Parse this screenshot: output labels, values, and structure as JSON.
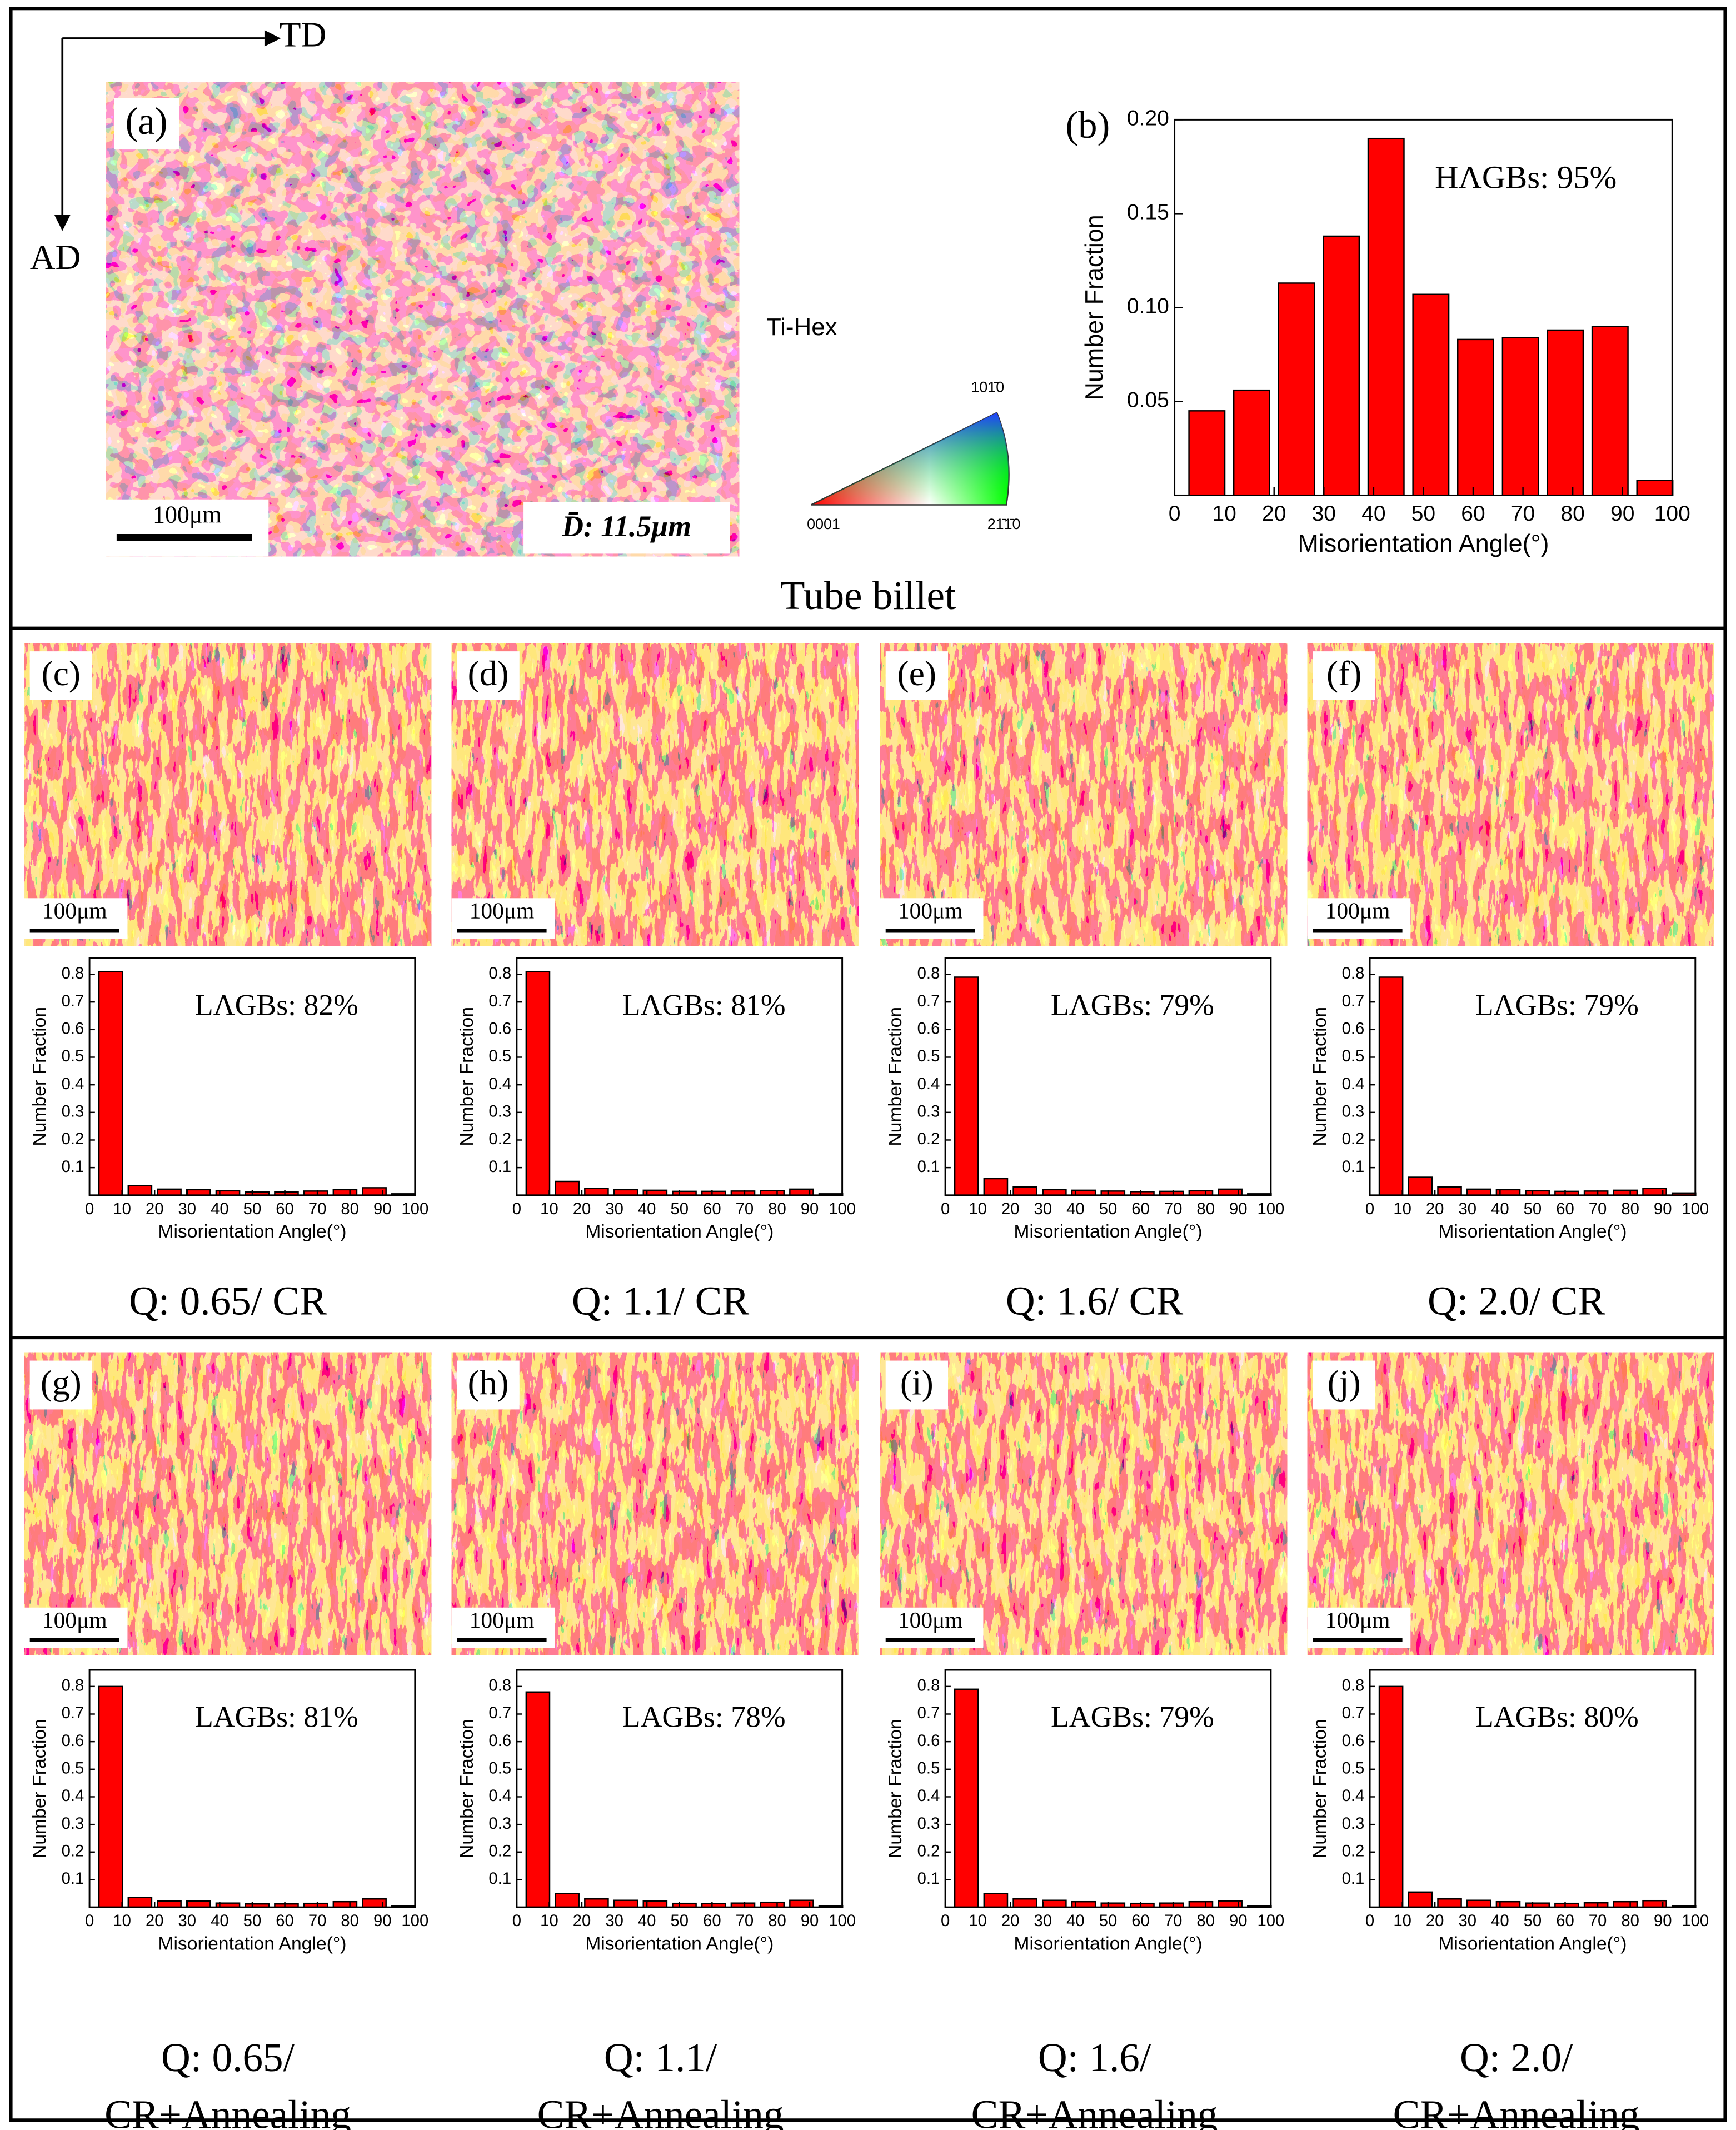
{
  "map_a": {
    "directions": [
      "TD",
      "AD"
    ],
    "panel": "(a)",
    "scale_bar": "100μm",
    "grain_size": "D̄: 11.5μm",
    "legend_title": "Ti-Hex",
    "ipf_labels": [
      "0001",
      "21̄1̄0",
      "101̄0"
    ],
    "caption": "Tube billet"
  },
  "chart_data": [
    {
      "type": "bar",
      "panel": "(b)",
      "annotation": "HΛGBs: 95%",
      "xlabel": "Misorientation Angle(°)",
      "ylabel": "Number Fraction",
      "color": "#ff0000",
      "x": [
        6.5,
        15.5,
        24.5,
        33.5,
        42.5,
        51.5,
        60.5,
        69.5,
        78.5,
        87.5,
        96.5
      ],
      "values": [
        0.045,
        0.056,
        0.113,
        0.138,
        0.19,
        0.107,
        0.083,
        0.084,
        0.088,
        0.09,
        0.008
      ],
      "xlim": [
        0,
        100
      ],
      "xticks": [
        0,
        10,
        20,
        30,
        40,
        50,
        60,
        70,
        80,
        90,
        100
      ],
      "ylim": [
        0,
        0.2
      ],
      "yticks": [
        0.05,
        {
          "value": 0.1,
          "label": "0.10"
        },
        0.15,
        {
          "value": 0.2,
          "label": "0.20"
        }
      ]
    },
    {
      "type": "bar",
      "panel": "(c)",
      "scale_bar": "100μm",
      "annotation": "LΛGBs: 82%",
      "caption": [
        "Q: 0.65/ CR"
      ],
      "xlabel": "Misorientation Angle(°)",
      "ylabel": "Number Fraction",
      "color": "#ff0000",
      "x": [
        6.5,
        15.5,
        24.5,
        33.5,
        42.5,
        51.5,
        60.5,
        69.5,
        78.5,
        87.5,
        96.5
      ],
      "values": [
        0.81,
        0.035,
        0.022,
        0.02,
        0.016,
        0.012,
        0.012,
        0.015,
        0.02,
        0.027,
        0.005
      ],
      "xlim": [
        0,
        100
      ],
      "xticks": [
        0,
        10,
        20,
        30,
        40,
        50,
        60,
        70,
        80,
        90,
        100
      ],
      "ylim": [
        0,
        0.86
      ],
      "yticks": [
        0.1,
        0.2,
        0.3,
        0.4,
        0.5,
        0.6,
        0.7,
        0.8
      ]
    },
    {
      "type": "bar",
      "panel": "(d)",
      "scale_bar": "100μm",
      "annotation": "LΛGBs: 81%",
      "caption": [
        "Q: 1.1/ CR"
      ],
      "xlabel": "Misorientation Angle(°)",
      "ylabel": "Number Fraction",
      "color": "#ff0000",
      "x": [
        6.5,
        15.5,
        24.5,
        33.5,
        42.5,
        51.5,
        60.5,
        69.5,
        78.5,
        87.5,
        96.5
      ],
      "values": [
        0.81,
        0.05,
        0.025,
        0.02,
        0.018,
        0.014,
        0.014,
        0.015,
        0.017,
        0.022,
        0.005
      ],
      "xlim": [
        0,
        100
      ],
      "xticks": [
        0,
        10,
        20,
        30,
        40,
        50,
        60,
        70,
        80,
        90,
        100
      ],
      "ylim": [
        0,
        0.86
      ],
      "yticks": [
        0.1,
        0.2,
        0.3,
        0.4,
        0.5,
        0.6,
        0.7,
        0.8
      ]
    },
    {
      "type": "bar",
      "panel": "(e)",
      "scale_bar": "100μm",
      "annotation": "LΛGBs: 79%",
      "caption": [
        "Q: 1.6/ CR"
      ],
      "xlabel": "Misorientation Angle(°)",
      "ylabel": "Number Fraction",
      "color": "#ff0000",
      "x": [
        6.5,
        15.5,
        24.5,
        33.5,
        42.5,
        51.5,
        60.5,
        69.5,
        78.5,
        87.5,
        96.5
      ],
      "values": [
        0.79,
        0.06,
        0.03,
        0.02,
        0.018,
        0.015,
        0.013,
        0.014,
        0.016,
        0.022,
        0.005
      ],
      "xlim": [
        0,
        100
      ],
      "xticks": [
        0,
        10,
        20,
        30,
        40,
        50,
        60,
        70,
        80,
        90,
        100
      ],
      "ylim": [
        0,
        0.86
      ],
      "yticks": [
        0.1,
        0.2,
        0.3,
        0.4,
        0.5,
        0.6,
        0.7,
        0.8
      ]
    },
    {
      "type": "bar",
      "panel": "(f)",
      "scale_bar": "100μm",
      "annotation": "LΛGBs: 79%",
      "caption": [
        "Q: 2.0/ CR"
      ],
      "xlabel": "Misorientation Angle(°)",
      "ylabel": "Number Fraction",
      "color": "#ff0000",
      "x": [
        6.5,
        15.5,
        24.5,
        33.5,
        42.5,
        51.5,
        60.5,
        69.5,
        78.5,
        87.5,
        96.5
      ],
      "values": [
        0.79,
        0.065,
        0.03,
        0.022,
        0.02,
        0.016,
        0.014,
        0.015,
        0.018,
        0.025,
        0.008
      ],
      "xlim": [
        0,
        100
      ],
      "xticks": [
        0,
        10,
        20,
        30,
        40,
        50,
        60,
        70,
        80,
        90,
        100
      ],
      "ylim": [
        0,
        0.86
      ],
      "yticks": [
        0.1,
        0.2,
        0.3,
        0.4,
        0.5,
        0.6,
        0.7,
        0.8
      ]
    },
    {
      "type": "bar",
      "panel": "(g)",
      "scale_bar": "100μm",
      "annotation": "LAGBs: 81%",
      "caption": [
        "Q: 0.65/",
        "CR+Annealing"
      ],
      "xlabel": "Misorientation Angle(°)",
      "ylabel": "Number Fraction",
      "color": "#ff0000",
      "x": [
        6.5,
        15.5,
        24.5,
        33.5,
        42.5,
        51.5,
        60.5,
        69.5,
        78.5,
        87.5,
        96.5
      ],
      "values": [
        0.8,
        0.035,
        0.022,
        0.022,
        0.015,
        0.012,
        0.012,
        0.014,
        0.02,
        0.03,
        0.004
      ],
      "xlim": [
        0,
        100
      ],
      "xticks": [
        0,
        10,
        20,
        30,
        40,
        50,
        60,
        70,
        80,
        90,
        100
      ],
      "ylim": [
        0,
        0.86
      ],
      "yticks": [
        0.1,
        0.2,
        0.3,
        0.4,
        0.5,
        0.6,
        0.7,
        0.8
      ]
    },
    {
      "type": "bar",
      "panel": "(h)",
      "scale_bar": "100μm",
      "annotation": "LAGBs: 78%",
      "caption": [
        "Q: 1.1/",
        "CR+Annealing"
      ],
      "xlabel": "Misorientation Angle(°)",
      "ylabel": "Number Fraction",
      "color": "#ff0000",
      "x": [
        6.5,
        15.5,
        24.5,
        33.5,
        42.5,
        51.5,
        60.5,
        69.5,
        78.5,
        87.5,
        96.5
      ],
      "values": [
        0.78,
        0.05,
        0.03,
        0.025,
        0.022,
        0.014,
        0.013,
        0.015,
        0.018,
        0.025,
        0.004
      ],
      "xlim": [
        0,
        100
      ],
      "xticks": [
        0,
        10,
        20,
        30,
        40,
        50,
        60,
        70,
        80,
        90,
        100
      ],
      "ylim": [
        0,
        0.86
      ],
      "yticks": [
        0.1,
        0.2,
        0.3,
        0.4,
        0.5,
        0.6,
        0.7,
        0.8
      ]
    },
    {
      "type": "bar",
      "panel": "(i)",
      "scale_bar": "100μm",
      "annotation": "LAGBs: 79%",
      "caption": [
        "Q: 1.6/",
        "CR+Annealing"
      ],
      "xlabel": "Misorientation Angle(°)",
      "ylabel": "Number Fraction",
      "color": "#ff0000",
      "x": [
        6.5,
        15.5,
        24.5,
        33.5,
        42.5,
        51.5,
        60.5,
        69.5,
        78.5,
        87.5,
        96.5
      ],
      "values": [
        0.79,
        0.05,
        0.03,
        0.025,
        0.02,
        0.015,
        0.014,
        0.015,
        0.02,
        0.023,
        0.005
      ],
      "xlim": [
        0,
        100
      ],
      "xticks": [
        0,
        10,
        20,
        30,
        40,
        50,
        60,
        70,
        80,
        90,
        100
      ],
      "ylim": [
        0,
        0.86
      ],
      "yticks": [
        0.1,
        0.2,
        0.3,
        0.4,
        0.5,
        0.6,
        0.7,
        0.8
      ]
    },
    {
      "type": "bar",
      "panel": "(j)",
      "scale_bar": "100μm",
      "annotation": "LAGBs: 80%",
      "caption": [
        "Q: 2.0/",
        "CR+Annealing"
      ],
      "xlabel": "Misorientation Angle(°)",
      "ylabel": "Number Fraction",
      "color": "#ff0000",
      "x": [
        6.5,
        15.5,
        24.5,
        33.5,
        42.5,
        51.5,
        60.5,
        69.5,
        78.5,
        87.5,
        96.5
      ],
      "values": [
        0.8,
        0.055,
        0.03,
        0.025,
        0.02,
        0.015,
        0.014,
        0.016,
        0.02,
        0.024,
        0.004
      ],
      "xlim": [
        0,
        100
      ],
      "xticks": [
        0,
        10,
        20,
        30,
        40,
        50,
        60,
        70,
        80,
        90,
        100
      ],
      "ylim": [
        0,
        0.86
      ],
      "yticks": [
        0.1,
        0.2,
        0.3,
        0.4,
        0.5,
        0.6,
        0.7,
        0.8
      ]
    }
  ]
}
